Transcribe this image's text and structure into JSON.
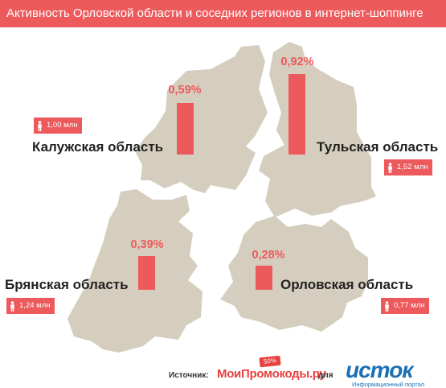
{
  "title": "Активность Орловской области и соседних регионов в интернет-шоппинге",
  "colors": {
    "accent": "#ed5a5c",
    "land": "#d5cebf",
    "text": "#222222"
  },
  "regions": [
    {
      "id": "kaluga",
      "name": "Калужская область",
      "share_percent": 0.59,
      "share_label": "0,59%",
      "population_label": "1,00 млн",
      "population_icon": "person-icon"
    },
    {
      "id": "tula",
      "name": "Тульская область",
      "share_percent": 0.92,
      "share_label": "0,92%",
      "population_label": "1,52 млн",
      "population_icon": "person-icon"
    },
    {
      "id": "bryansk",
      "name": "Брянская область",
      "share_percent": 0.39,
      "share_label": "0,39%",
      "population_label": "1,24 млн",
      "population_icon": "person-icon"
    },
    {
      "id": "orel",
      "name": "Орловская область",
      "share_percent": 0.28,
      "share_label": "0,28%",
      "population_label": "0,77 млн",
      "population_icon": "person-icon"
    }
  ],
  "footer": {
    "source_label": "Источник:",
    "source_name": "МоиПромокоды.ру",
    "source_badge": "50%",
    "for_label": "для",
    "logo_text": "исток",
    "logo_subtitle": "Информационный портал"
  }
}
